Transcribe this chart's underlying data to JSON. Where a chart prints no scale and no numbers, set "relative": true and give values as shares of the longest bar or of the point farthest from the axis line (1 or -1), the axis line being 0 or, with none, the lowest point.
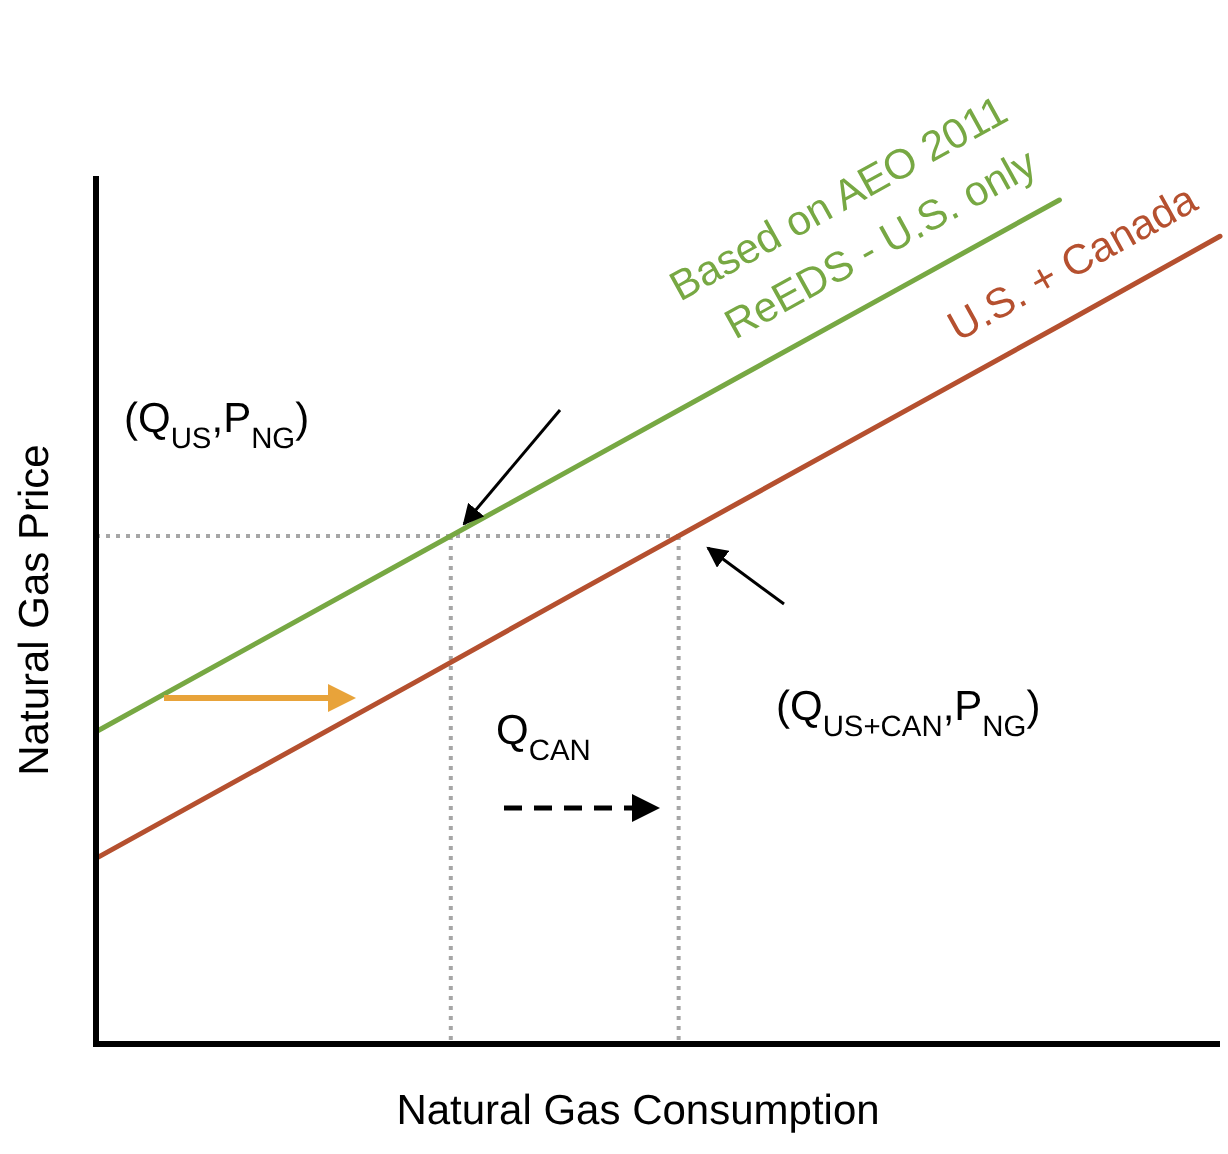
{
  "chart_data": {
    "type": "line",
    "relative": true,
    "xlabel": "Natural Gas Consumption",
    "ylabel": "Natural Gas Price",
    "categories": [
      null,
      null,
      null,
      null,
      null,
      null,
      null,
      null
    ],
    "series": [
      {
        "name": "Based on AEO 2011\nReEDS - U.S. only",
        "color": "#77a843",
        "values": [
          0.37,
          0.475,
          0.58,
          0.685,
          0.79,
          0.895,
          1,
          null
        ]
      },
      {
        "name": "U.S. + Canada",
        "color": "#b5502f",
        "values": [
          0.22,
          0.325,
          0.43,
          0.536,
          0.641,
          0.746,
          0.851,
          0.957
        ]
      }
    ],
    "ref_lines": [
      {
        "axis": "y",
        "value": 0.602,
        "color": "#a6a6a6",
        "line_style": "dotted"
      }
    ],
    "annotations": [
      "(Q$_{US}$,P$_{NG}$)",
      "Q$_{CAN}$",
      "(Q$_{US+CAN}$,P$_{NG}$)"
    ],
    "marker": "none",
    "line_style": "solid"
  }
}
